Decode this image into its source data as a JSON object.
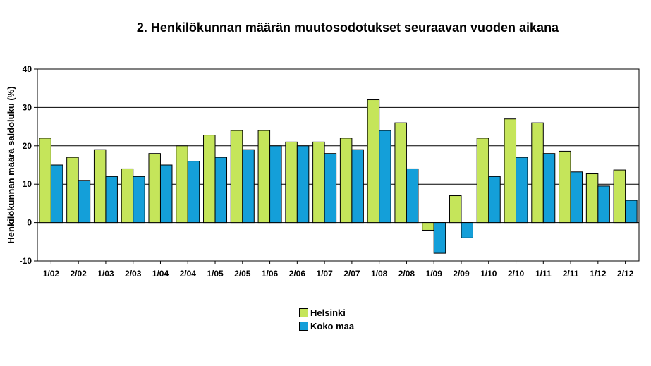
{
  "chart_data": {
    "type": "bar",
    "title": "2. Henkilökunnan määrän muutosodotukset seuraavan vuoden aikana",
    "ylabel": "Henkilökunnan määrä saldoluku (%)",
    "xlabel": "",
    "ylim": [
      -10,
      40
    ],
    "yticks": [
      -10,
      0,
      10,
      20,
      30,
      40
    ],
    "grid": true,
    "legend_position": "bottom-center",
    "categories": [
      "1/02",
      "2/02",
      "1/03",
      "2/03",
      "1/04",
      "2/04",
      "1/05",
      "2/05",
      "1/06",
      "2/06",
      "1/07",
      "2/07",
      "1/08",
      "2/08",
      "1/09",
      "2/09",
      "1/10",
      "2/10",
      "1/11",
      "2/11",
      "1/12",
      "2/12"
    ],
    "series": [
      {
        "name": "Helsinki",
        "color": "#c5e55a",
        "values": [
          22,
          17,
          19,
          14,
          18,
          20,
          22.8,
          24,
          24,
          21,
          21,
          22,
          32,
          26,
          -2,
          7,
          22,
          27,
          26,
          18.6,
          12.7,
          13.7
        ]
      },
      {
        "name": "Koko maa",
        "color": "#149fd9",
        "values": [
          15,
          11,
          12,
          12,
          15,
          16,
          17,
          19,
          20,
          20,
          18,
          19,
          24,
          14,
          -8,
          -4,
          12,
          17,
          18,
          13.2,
          9.5,
          5.8
        ]
      }
    ]
  }
}
